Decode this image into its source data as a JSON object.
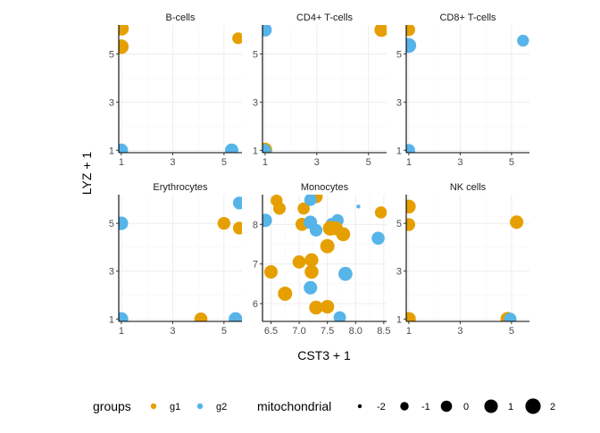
{
  "chart_data": {
    "type": "scatter",
    "xlabel": "CST3 + 1",
    "ylabel": "LYZ + 1",
    "colors": {
      "g1": "#E69F00",
      "g2": "#56B4E9"
    },
    "legend": {
      "groups_title": "groups",
      "groups": [
        "g1",
        "g2"
      ],
      "size_title": "mitochondrial",
      "size_values": [
        -2,
        -1,
        0,
        1,
        2
      ],
      "size_labels": [
        "-2",
        "-1",
        "0",
        "1",
        "2"
      ],
      "placement": "bottom"
    },
    "panels": [
      {
        "title": "B-cells",
        "xlim": [
          0.9,
          5.7
        ],
        "ylim": [
          0.9,
          6.2
        ],
        "xticks": [
          1,
          3,
          5
        ],
        "xtick_labels": [
          "1",
          "3",
          "5"
        ],
        "yticks": [
          1,
          3,
          5
        ],
        "ytick_labels": [
          "1",
          "3",
          "5"
        ],
        "points": [
          {
            "x": 1.02,
            "y": 6.05,
            "group": "g1",
            "mito": 1.2
          },
          {
            "x": 1.0,
            "y": 5.3,
            "group": "g1",
            "mito": 1.6
          },
          {
            "x": 5.55,
            "y": 5.65,
            "group": "g1",
            "mito": 0.2
          },
          {
            "x": 1.0,
            "y": 1.0,
            "group": "g2",
            "mito": 1.0
          },
          {
            "x": 5.3,
            "y": 1.0,
            "group": "g2",
            "mito": 1.0
          }
        ]
      },
      {
        "title": "CD4+ T-cells",
        "xlim": [
          0.9,
          5.7
        ],
        "ylim": [
          0.9,
          6.2
        ],
        "xticks": [
          1,
          3,
          5
        ],
        "xtick_labels": [
          "1",
          "3",
          "5"
        ],
        "yticks": [
          1,
          3,
          5
        ],
        "ytick_labels": [
          "1",
          "3",
          "5"
        ],
        "points": [
          {
            "x": 1.0,
            "y": 6.0,
            "group": "g2",
            "mito": 1.0
          },
          {
            "x": 5.5,
            "y": 6.0,
            "group": "g1",
            "mito": 1.3
          },
          {
            "x": 1.0,
            "y": 1.02,
            "group": "g1",
            "mito": 1.4
          },
          {
            "x": 1.0,
            "y": 1.0,
            "group": "g2",
            "mito": 0.4
          }
        ]
      },
      {
        "title": "CD8+ T-cells",
        "xlim": [
          0.9,
          5.7
        ],
        "ylim": [
          0.9,
          6.2
        ],
        "xticks": [
          1,
          3,
          5
        ],
        "xtick_labels": [
          "1",
          "3",
          "5"
        ],
        "yticks": [
          1,
          3,
          5
        ],
        "ytick_labels": [
          "1",
          "3",
          "5"
        ],
        "points": [
          {
            "x": 1.0,
            "y": 6.0,
            "group": "g1",
            "mito": 0.6
          },
          {
            "x": 1.0,
            "y": 5.35,
            "group": "g2",
            "mito": 1.7
          },
          {
            "x": 5.45,
            "y": 5.55,
            "group": "g2",
            "mito": 0.3
          },
          {
            "x": 1.0,
            "y": 1.0,
            "group": "g1",
            "mito": 0.2
          },
          {
            "x": 1.0,
            "y": 1.0,
            "group": "g2",
            "mito": 0.6
          }
        ]
      },
      {
        "title": "Erythrocytes",
        "xlim": [
          0.9,
          5.7
        ],
        "ylim": [
          0.9,
          6.2
        ],
        "xticks": [
          1,
          3,
          5
        ],
        "xtick_labels": [
          "1",
          "3",
          "5"
        ],
        "yticks": [
          1,
          3,
          5
        ],
        "ytick_labels": [
          "1",
          "3",
          "5"
        ],
        "points": [
          {
            "x": 1.0,
            "y": 5.0,
            "group": "g2",
            "mito": 1.1
          },
          {
            "x": 5.6,
            "y": 5.85,
            "group": "g2",
            "mito": 0.7
          },
          {
            "x": 5.0,
            "y": 5.0,
            "group": "g1",
            "mito": 0.7
          },
          {
            "x": 5.6,
            "y": 4.8,
            "group": "g1",
            "mito": 0.7
          },
          {
            "x": 1.0,
            "y": 1.0,
            "group": "g2",
            "mito": 1.2
          },
          {
            "x": 4.1,
            "y": 1.0,
            "group": "g1",
            "mito": 0.8
          },
          {
            "x": 5.45,
            "y": 1.0,
            "group": "g2",
            "mito": 1.1
          }
        ]
      },
      {
        "title": "Monocytes",
        "xlim": [
          6.35,
          8.55
        ],
        "ylim": [
          5.55,
          8.75
        ],
        "xticks": [
          6.5,
          7.0,
          7.5,
          8.0,
          8.5
        ],
        "xtick_labels": [
          "6.5",
          "7.0",
          "7.5",
          "8.0",
          "8.5"
        ],
        "yticks": [
          6,
          7,
          8
        ],
        "ytick_labels": [
          "6",
          "7",
          "8"
        ],
        "points": [
          {
            "x": 6.4,
            "y": 8.1,
            "group": "g2",
            "mito": 1.0
          },
          {
            "x": 6.6,
            "y": 8.6,
            "group": "g1",
            "mito": 0.3
          },
          {
            "x": 6.65,
            "y": 8.4,
            "group": "g1",
            "mito": 0.6
          },
          {
            "x": 7.08,
            "y": 8.4,
            "group": "g1",
            "mito": 0.4
          },
          {
            "x": 7.3,
            "y": 8.7,
            "group": "g1",
            "mito": 0.9
          },
          {
            "x": 7.2,
            "y": 8.62,
            "group": "g2",
            "mito": 0.5
          },
          {
            "x": 7.05,
            "y": 8.0,
            "group": "g1",
            "mito": 0.8
          },
          {
            "x": 7.2,
            "y": 8.05,
            "group": "g2",
            "mito": 1.0
          },
          {
            "x": 7.3,
            "y": 7.85,
            "group": "g2",
            "mito": 0.6
          },
          {
            "x": 7.58,
            "y": 8.0,
            "group": "g2",
            "mito": 0.7
          },
          {
            "x": 7.68,
            "y": 8.1,
            "group": "g2",
            "mito": 0.5
          },
          {
            "x": 7.55,
            "y": 7.9,
            "group": "g1",
            "mito": 1.6
          },
          {
            "x": 7.65,
            "y": 7.9,
            "group": "g1",
            "mito": 1.2
          },
          {
            "x": 7.78,
            "y": 7.75,
            "group": "g1",
            "mito": 1.3
          },
          {
            "x": 7.5,
            "y": 7.45,
            "group": "g1",
            "mito": 1.4
          },
          {
            "x": 8.05,
            "y": 8.45,
            "group": "g2",
            "mito": -2.0
          },
          {
            "x": 8.45,
            "y": 8.3,
            "group": "g1",
            "mito": 0.4
          },
          {
            "x": 8.4,
            "y": 7.65,
            "group": "g2",
            "mito": 0.8
          },
          {
            "x": 6.5,
            "y": 6.8,
            "group": "g1",
            "mito": 1.0
          },
          {
            "x": 7.0,
            "y": 7.05,
            "group": "g1",
            "mito": 0.9
          },
          {
            "x": 7.22,
            "y": 7.1,
            "group": "g1",
            "mito": 1.1
          },
          {
            "x": 7.22,
            "y": 6.8,
            "group": "g1",
            "mito": 1.2
          },
          {
            "x": 7.82,
            "y": 6.75,
            "group": "g2",
            "mito": 1.3
          },
          {
            "x": 7.2,
            "y": 6.4,
            "group": "g2",
            "mito": 1.0
          },
          {
            "x": 6.75,
            "y": 6.25,
            "group": "g1",
            "mito": 1.4
          },
          {
            "x": 7.3,
            "y": 5.9,
            "group": "g1",
            "mito": 1.2
          },
          {
            "x": 7.5,
            "y": 5.92,
            "group": "g1",
            "mito": 1.1
          },
          {
            "x": 7.72,
            "y": 5.65,
            "group": "g2",
            "mito": 0.5
          }
        ]
      },
      {
        "title": "NK cells",
        "xlim": [
          0.9,
          5.7
        ],
        "ylim": [
          0.9,
          6.2
        ],
        "xticks": [
          1,
          3,
          5
        ],
        "xtick_labels": [
          "1",
          "3",
          "5"
        ],
        "yticks": [
          1,
          3,
          5
        ],
        "ytick_labels": [
          "1",
          "3",
          "5"
        ],
        "points": [
          {
            "x": 1.0,
            "y": 5.7,
            "group": "g1",
            "mito": 1.2
          },
          {
            "x": 1.0,
            "y": 4.95,
            "group": "g1",
            "mito": 0.7
          },
          {
            "x": 5.2,
            "y": 5.05,
            "group": "g1",
            "mito": 1.0
          },
          {
            "x": 1.0,
            "y": 1.0,
            "group": "g1",
            "mito": 1.3
          },
          {
            "x": 4.85,
            "y": 1.0,
            "group": "g1",
            "mito": 1.4
          },
          {
            "x": 4.95,
            "y": 1.0,
            "group": "g2",
            "mito": 0.6
          }
        ]
      }
    ]
  }
}
